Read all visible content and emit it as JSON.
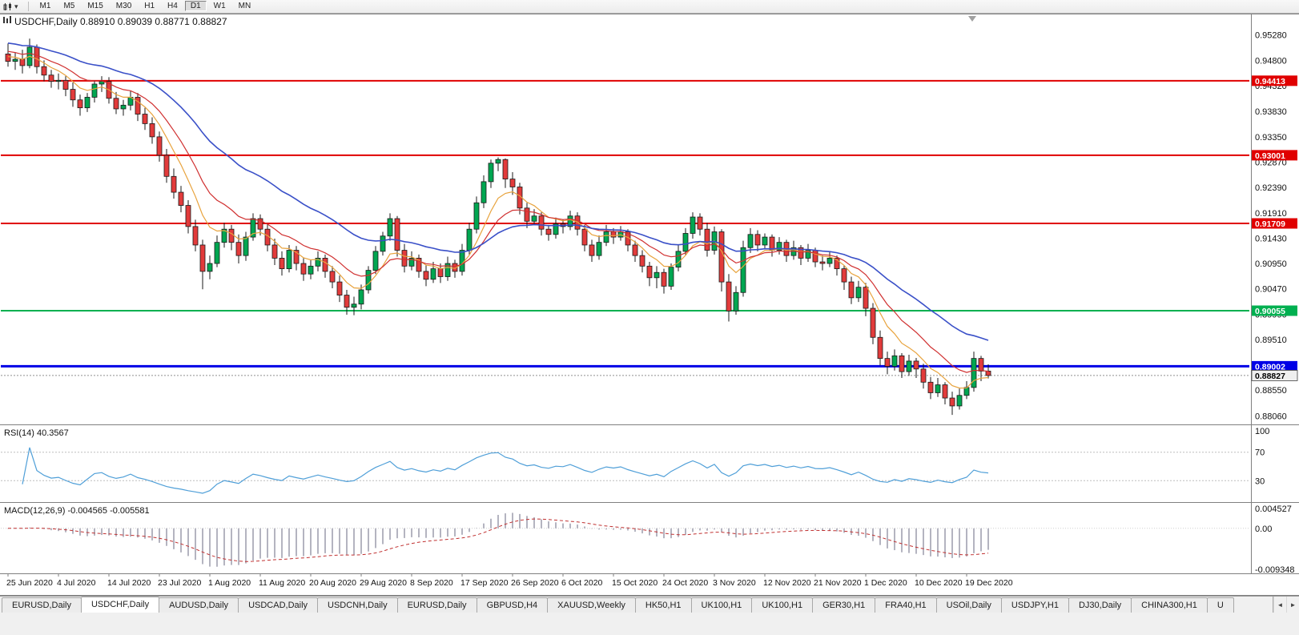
{
  "toolbar": {
    "periods": [
      "M1",
      "M5",
      "M15",
      "M30",
      "H1",
      "H4",
      "D1",
      "W1",
      "MN"
    ],
    "active_period": "D1",
    "caret_glyph": "▾"
  },
  "chart": {
    "title": "USDCHF,Daily 0.88910 0.89039 0.88771 0.88827",
    "symbol": "USDCHF,Daily"
  },
  "rsi_panel": {
    "label": "RSI(14) 40.3567",
    "levels": [
      {
        "t": "100",
        "v": 100
      },
      {
        "t": "70",
        "v": 70
      },
      {
        "t": "30",
        "v": 30
      }
    ],
    "line_color": "#4F9FD8"
  },
  "macd_panel": {
    "label": "MACD(12,26,9) -0.004565 -0.005581",
    "axis": [
      {
        "t": "0.004527",
        "v": 0.004527
      },
      {
        "t": "0.00",
        "v": 0
      },
      {
        "t": "-0.009348",
        "v": -0.009348
      }
    ],
    "hist_color": "#B4B4C0",
    "signal_color": "#C03030"
  },
  "price_axis": {
    "labels": [
      {
        "t": "0.95280",
        "v": 0.9528
      },
      {
        "t": "0.94800",
        "v": 0.948
      },
      {
        "t": "0.94320",
        "v": 0.9432
      },
      {
        "t": "0.93830",
        "v": 0.9383
      },
      {
        "t": "0.93350",
        "v": 0.9335
      },
      {
        "t": "0.92870",
        "v": 0.9287
      },
      {
        "t": "0.92390",
        "v": 0.9239
      },
      {
        "t": "0.91910",
        "v": 0.9191
      },
      {
        "t": "0.91430",
        "v": 0.9143
      },
      {
        "t": "0.90950",
        "v": 0.9095
      },
      {
        "t": "0.90470",
        "v": 0.9047
      },
      {
        "t": "0.89990",
        "v": 0.8999
      },
      {
        "t": "0.89510",
        "v": 0.8951
      },
      {
        "t": "0.89030",
        "v": 0.8903
      },
      {
        "t": "0.88550",
        "v": 0.8855
      },
      {
        "t": "0.88060",
        "v": 0.8806
      }
    ]
  },
  "time_axis": {
    "labels": [
      "25 Jun 2020",
      "4 Jul 2020",
      "14 Jul 2020",
      "23 Jul 2020",
      "1 Aug 2020",
      "11 Aug 2020",
      "20 Aug 2020",
      "29 Aug 2020",
      "8 Sep 2020",
      "17 Sep 2020",
      "26 Sep 2020",
      "6 Oct 2020",
      "15 Oct 2020",
      "24 Oct 2020",
      "3 Nov 2020",
      "12 Nov 2020",
      "21 Nov 2020",
      "1 Dec 2020",
      "10 Dec 2020",
      "19 Dec 2020"
    ],
    "every": 7
  },
  "tabs": {
    "items": [
      "EURUSD,Daily",
      "USDCHF,Daily",
      "AUDUSD,Daily",
      "USDCAD,Daily",
      "USDCNH,Daily",
      "EURUSD,Daily",
      "GBPUSD,H4",
      "XAUUSD,Weekly",
      "HK50,H1",
      "UK100,H1",
      "UK100,H1",
      "GER30,H1",
      "FRA40,H1",
      "USOil,Daily",
      "USDJPY,H1",
      "DJ30,Daily",
      "CHINA300,H1",
      "U"
    ],
    "active_index": 1,
    "scroll_left": "◄",
    "scroll_right": "►"
  },
  "colors": {
    "bull": "#00A651",
    "bear": "#E23B3B",
    "outline": "#1A1A1A",
    "background": "#FFFFFF",
    "panel_sep": "#808080",
    "current_price_line": "#909090"
  },
  "chart_data": {
    "type": "candlestick",
    "symbol": "USDCHF",
    "timeframe": "Daily",
    "last_ohlc": {
      "open": "0.88910",
      "high": "0.89039",
      "low": "0.88771",
      "close": "0.88827"
    },
    "y_domain": [
      0.879,
      0.9567
    ],
    "candles": [
      [
        0.9492,
        0.9512,
        0.9468,
        0.9478
      ],
      [
        0.9478,
        0.9495,
        0.9462,
        0.9482
      ],
      [
        0.9482,
        0.95,
        0.9455,
        0.947
      ],
      [
        0.947,
        0.9521,
        0.9465,
        0.9505
      ],
      [
        0.9505,
        0.951,
        0.9455,
        0.9468
      ],
      [
        0.9468,
        0.948,
        0.944,
        0.9452
      ],
      [
        0.9452,
        0.9462,
        0.9428,
        0.944
      ],
      [
        0.944,
        0.9455,
        0.9425,
        0.9442
      ],
      [
        0.9442,
        0.945,
        0.9412,
        0.9425
      ],
      [
        0.9425,
        0.9438,
        0.9392,
        0.9405
      ],
      [
        0.9405,
        0.9415,
        0.9375,
        0.939
      ],
      [
        0.939,
        0.9418,
        0.9382,
        0.941
      ],
      [
        0.941,
        0.9442,
        0.94,
        0.9435
      ],
      [
        0.9435,
        0.945,
        0.942,
        0.944
      ],
      [
        0.944,
        0.9448,
        0.9398,
        0.9408
      ],
      [
        0.9408,
        0.942,
        0.9378,
        0.9388
      ],
      [
        0.9388,
        0.9405,
        0.9375,
        0.9395
      ],
      [
        0.9395,
        0.9422,
        0.9385,
        0.941
      ],
      [
        0.941,
        0.9418,
        0.9365,
        0.9378
      ],
      [
        0.9378,
        0.939,
        0.9348,
        0.936
      ],
      [
        0.936,
        0.9372,
        0.9322,
        0.9335
      ],
      [
        0.9335,
        0.9345,
        0.9288,
        0.93
      ],
      [
        0.93,
        0.9312,
        0.9248,
        0.926
      ],
      [
        0.926,
        0.9275,
        0.9218,
        0.923
      ],
      [
        0.923,
        0.9242,
        0.9192,
        0.9205
      ],
      [
        0.9205,
        0.9215,
        0.9152,
        0.9165
      ],
      [
        0.9165,
        0.9178,
        0.9118,
        0.913
      ],
      [
        0.913,
        0.914,
        0.9046,
        0.908
      ],
      [
        0.908,
        0.911,
        0.9065,
        0.9095
      ],
      [
        0.9095,
        0.9148,
        0.9088,
        0.9135
      ],
      [
        0.9135,
        0.9172,
        0.9125,
        0.916
      ],
      [
        0.916,
        0.9168,
        0.912,
        0.9135
      ],
      [
        0.9135,
        0.915,
        0.9095,
        0.911
      ],
      [
        0.911,
        0.9155,
        0.91,
        0.9145
      ],
      [
        0.9145,
        0.919,
        0.9138,
        0.918
      ],
      [
        0.918,
        0.9188,
        0.9148,
        0.916
      ],
      [
        0.916,
        0.917,
        0.9118,
        0.913
      ],
      [
        0.913,
        0.9142,
        0.9092,
        0.9105
      ],
      [
        0.9105,
        0.9118,
        0.9072,
        0.9085
      ],
      [
        0.9085,
        0.913,
        0.9078,
        0.912
      ],
      [
        0.912,
        0.9128,
        0.9082,
        0.9095
      ],
      [
        0.9095,
        0.9105,
        0.9062,
        0.9075
      ],
      [
        0.9075,
        0.9102,
        0.9065,
        0.909
      ],
      [
        0.909,
        0.9118,
        0.908,
        0.9105
      ],
      [
        0.9105,
        0.9112,
        0.9068,
        0.908
      ],
      [
        0.908,
        0.909,
        0.9048,
        0.906
      ],
      [
        0.906,
        0.9072,
        0.9022,
        0.9035
      ],
      [
        0.9035,
        0.9045,
        0.8998,
        0.9012
      ],
      [
        0.9012,
        0.9032,
        0.8997,
        0.9018
      ],
      [
        0.9018,
        0.9055,
        0.9008,
        0.9045
      ],
      [
        0.9045,
        0.909,
        0.9038,
        0.9082
      ],
      [
        0.9082,
        0.9128,
        0.9075,
        0.9118
      ],
      [
        0.9118,
        0.9155,
        0.911,
        0.9147
      ],
      [
        0.9147,
        0.919,
        0.9138,
        0.918
      ],
      [
        0.918,
        0.9185,
        0.9108,
        0.912
      ],
      [
        0.912,
        0.9132,
        0.9078,
        0.909
      ],
      [
        0.909,
        0.9118,
        0.9082,
        0.9105
      ],
      [
        0.9105,
        0.9112,
        0.9068,
        0.908
      ],
      [
        0.908,
        0.9092,
        0.9052,
        0.9065
      ],
      [
        0.9065,
        0.9098,
        0.9058,
        0.9085
      ],
      [
        0.9085,
        0.9095,
        0.9058,
        0.907
      ],
      [
        0.907,
        0.9108,
        0.9062,
        0.9095
      ],
      [
        0.9095,
        0.9102,
        0.9068,
        0.908
      ],
      [
        0.908,
        0.9132,
        0.9072,
        0.912
      ],
      [
        0.912,
        0.9172,
        0.9112,
        0.916
      ],
      [
        0.916,
        0.9222,
        0.9152,
        0.921
      ],
      [
        0.921,
        0.9262,
        0.92,
        0.925
      ],
      [
        0.925,
        0.9292,
        0.9238,
        0.9285
      ],
      [
        0.9285,
        0.9296,
        0.927,
        0.9292
      ],
      [
        0.9292,
        0.9294,
        0.9238,
        0.9255
      ],
      [
        0.9255,
        0.9268,
        0.9225,
        0.924
      ],
      [
        0.924,
        0.9248,
        0.9188,
        0.92
      ],
      [
        0.92,
        0.921,
        0.9162,
        0.9175
      ],
      [
        0.9175,
        0.9198,
        0.9168,
        0.9185
      ],
      [
        0.9185,
        0.9192,
        0.9148,
        0.916
      ],
      [
        0.916,
        0.9168,
        0.9138,
        0.915
      ],
      [
        0.915,
        0.9182,
        0.9142,
        0.917
      ],
      [
        0.917,
        0.9178,
        0.9152,
        0.9165
      ],
      [
        0.9165,
        0.9195,
        0.9158,
        0.9185
      ],
      [
        0.9185,
        0.9192,
        0.9148,
        0.916
      ],
      [
        0.916,
        0.9168,
        0.9118,
        0.913
      ],
      [
        0.913,
        0.914,
        0.9098,
        0.911
      ],
      [
        0.911,
        0.9148,
        0.9102,
        0.9135
      ],
      [
        0.9135,
        0.9168,
        0.9128,
        0.9155
      ],
      [
        0.9155,
        0.9162,
        0.9132,
        0.9145
      ],
      [
        0.9145,
        0.9166,
        0.9138,
        0.9155
      ],
      [
        0.9155,
        0.916,
        0.9118,
        0.913
      ],
      [
        0.913,
        0.9138,
        0.9098,
        0.911
      ],
      [
        0.911,
        0.912,
        0.9078,
        0.909
      ],
      [
        0.909,
        0.9098,
        0.9052,
        0.9068
      ],
      [
        0.9068,
        0.909,
        0.9048,
        0.9078
      ],
      [
        0.9078,
        0.9085,
        0.9038,
        0.9052
      ],
      [
        0.9052,
        0.9095,
        0.9045,
        0.9088
      ],
      [
        0.9088,
        0.913,
        0.908,
        0.9118
      ],
      [
        0.9118,
        0.9162,
        0.911,
        0.9152
      ],
      [
        0.9152,
        0.9192,
        0.9142,
        0.9183
      ],
      [
        0.9183,
        0.919,
        0.9148,
        0.916
      ],
      [
        0.916,
        0.9172,
        0.9108,
        0.912
      ],
      [
        0.912,
        0.9165,
        0.9112,
        0.9155
      ],
      [
        0.9155,
        0.916,
        0.9042,
        0.906
      ],
      [
        0.906,
        0.9075,
        0.8985,
        0.9005
      ],
      [
        0.9005,
        0.9052,
        0.8998,
        0.904
      ],
      [
        0.904,
        0.9138,
        0.9032,
        0.9125
      ],
      [
        0.9125,
        0.9162,
        0.9115,
        0.915
      ],
      [
        0.915,
        0.9158,
        0.9118,
        0.913
      ],
      [
        0.913,
        0.9152,
        0.9122,
        0.9145
      ],
      [
        0.9145,
        0.915,
        0.9108,
        0.912
      ],
      [
        0.912,
        0.9145,
        0.9112,
        0.9135
      ],
      [
        0.9135,
        0.914,
        0.9098,
        0.911
      ],
      [
        0.911,
        0.9138,
        0.9102,
        0.9125
      ],
      [
        0.9125,
        0.913,
        0.9092,
        0.9105
      ],
      [
        0.9105,
        0.9132,
        0.9098,
        0.912
      ],
      [
        0.912,
        0.9125,
        0.9088,
        0.9098
      ],
      [
        0.9098,
        0.911,
        0.9082,
        0.9095
      ],
      [
        0.9095,
        0.9118,
        0.9088,
        0.9105
      ],
      [
        0.9105,
        0.911,
        0.9072,
        0.9085
      ],
      [
        0.9085,
        0.9092,
        0.9045,
        0.906
      ],
      [
        0.906,
        0.907,
        0.9018,
        0.903
      ],
      [
        0.903,
        0.9062,
        0.9022,
        0.905
      ],
      [
        0.905,
        0.9058,
        0.8995,
        0.901
      ],
      [
        0.901,
        0.902,
        0.8942,
        0.8955
      ],
      [
        0.8955,
        0.8968,
        0.8902,
        0.8915
      ],
      [
        0.8915,
        0.8928,
        0.8885,
        0.89
      ],
      [
        0.89,
        0.8932,
        0.8892,
        0.892
      ],
      [
        0.892,
        0.8925,
        0.8878,
        0.889
      ],
      [
        0.889,
        0.8922,
        0.8882,
        0.891
      ],
      [
        0.891,
        0.8916,
        0.8878,
        0.8895
      ],
      [
        0.8895,
        0.8905,
        0.8858,
        0.887
      ],
      [
        0.887,
        0.888,
        0.8838,
        0.885
      ],
      [
        0.885,
        0.8878,
        0.8842,
        0.8865
      ],
      [
        0.8865,
        0.887,
        0.8828,
        0.884
      ],
      [
        0.884,
        0.8852,
        0.8808,
        0.8825
      ],
      [
        0.8825,
        0.8858,
        0.8818,
        0.8845
      ],
      [
        0.8845,
        0.8872,
        0.8838,
        0.886
      ],
      [
        0.886,
        0.8928,
        0.8852,
        0.8915
      ],
      [
        0.8915,
        0.892,
        0.8872,
        0.8891
      ],
      [
        0.8891,
        0.89039,
        0.88771,
        0.88827
      ]
    ],
    "ma": [
      {
        "name": "ma-fast",
        "period": 7,
        "seed": 0.949,
        "color": "#E8A33D",
        "width": 1.2
      },
      {
        "name": "ma-mid",
        "period": 13,
        "seed": 0.95,
        "color": "#D03030",
        "width": 1.2
      },
      {
        "name": "ma-slow",
        "period": 30,
        "seed": 0.9515,
        "color": "#3A50C8",
        "width": 1.6
      }
    ],
    "hlines": [
      {
        "price": 0.94413,
        "label": "0.94413",
        "color": "#E00000",
        "width": 2
      },
      {
        "price": 0.93001,
        "label": "0.93001",
        "color": "#E00000",
        "width": 2
      },
      {
        "price": 0.91709,
        "label": "0.91709",
        "color": "#E00000",
        "width": 2
      },
      {
        "price": 0.90055,
        "label": "0.90055",
        "color": "#00B050",
        "width": 2
      },
      {
        "price": 0.89002,
        "label": "0.89002",
        "color": "#0000E6",
        "width": 3
      }
    ],
    "current_price": {
      "value": 0.88827,
      "label": "0.88827"
    },
    "rsi": {
      "period": 14,
      "value_label": "40.3567"
    },
    "macd": {
      "fast": 12,
      "slow": 26,
      "signal": 9,
      "value_labels": [
        "-0.004565",
        "-0.005581"
      ]
    }
  }
}
